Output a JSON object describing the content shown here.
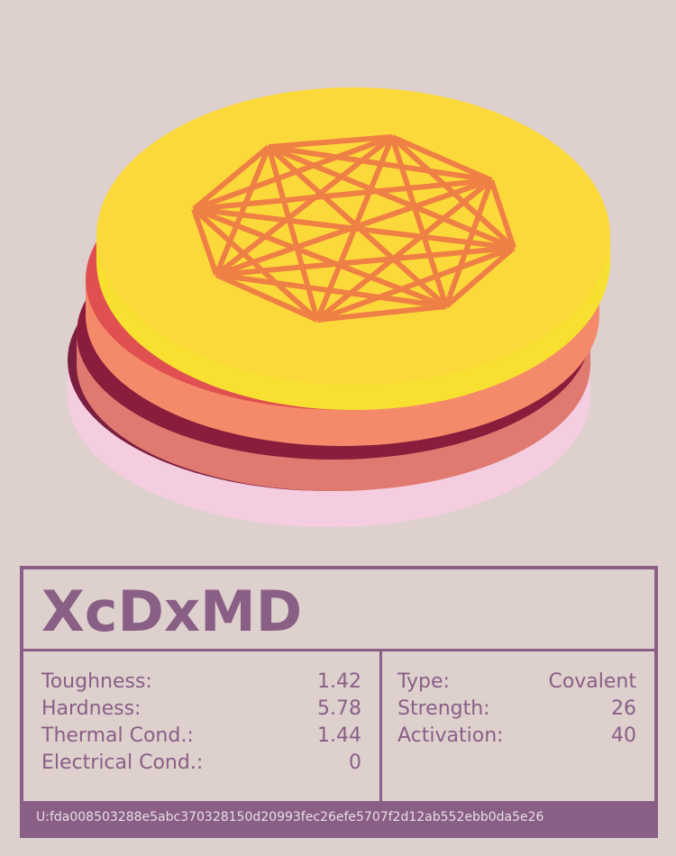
{
  "card": {
    "title": "XcDxMD",
    "left_stats": [
      {
        "label": "Toughness:",
        "value": "1.42"
      },
      {
        "label": "Hardness:",
        "value": "5.78"
      },
      {
        "label": "Thermal Cond.:",
        "value": "1.44"
      },
      {
        "label": "Electrical Cond.:",
        "value": "0"
      }
    ],
    "right_stats": [
      {
        "label": "Type:",
        "value": "Covalent"
      },
      {
        "label": "Strength:",
        "value": "26"
      },
      {
        "label": "Activation:",
        "value": "40"
      }
    ],
    "footer": "U:fda008503288e5abc370328150d20993fec26efe5707f2d12ab552ebb0da5e26"
  }
}
